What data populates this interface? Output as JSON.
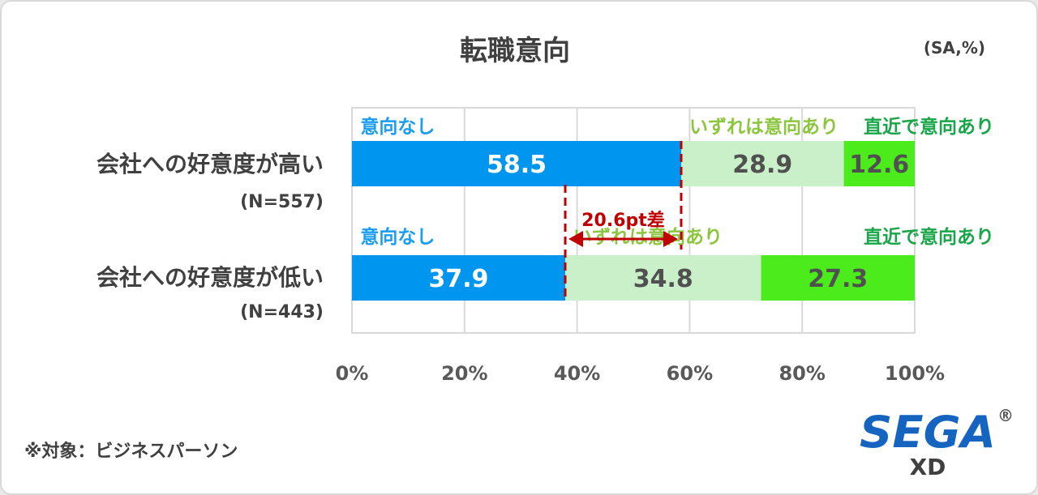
{
  "chart_data": {
    "type": "bar",
    "stacked": true,
    "orientation": "horizontal",
    "title": "転職意向",
    "unit_note": "(SA,%)",
    "categories": [
      "会社への好意度が高い",
      "会社への好意度が低い"
    ],
    "sample_sizes": [
      "(N=557)",
      "(N=443)"
    ],
    "series": [
      {
        "name": "意向なし",
        "values": [
          58.5,
          37.9
        ],
        "color": "#0096f0",
        "label_color": "#ffffff"
      },
      {
        "name": "いずれは意向あり",
        "values": [
          28.9,
          34.8
        ],
        "color": "#c9f0c9",
        "label_color": "#505050"
      },
      {
        "name": "直近で意向あり",
        "values": [
          12.6,
          27.3
        ],
        "color": "#4cec1c",
        "label_color": "#505050"
      }
    ],
    "series_label_colors": [
      "#1a9cf0",
      "#8cc63e",
      "#19a649"
    ],
    "value_labels": [
      [
        "58.5",
        "28.9",
        "12.6"
      ],
      [
        "37.9",
        "34.8",
        "27.3"
      ]
    ],
    "xlim": [
      0,
      100
    ],
    "xticks": [
      "0%",
      "20%",
      "40%",
      "60%",
      "80%",
      "100%"
    ],
    "grid": true,
    "annotation": {
      "text": "20.6pt差",
      "from": 37.9,
      "to": 58.5,
      "color": "#c00000"
    }
  },
  "footnote": "※対象：ビジネスパーソン",
  "logo": {
    "brand": "SEGA",
    "mark": "®",
    "sub": "XD",
    "color": "#1565c0"
  }
}
